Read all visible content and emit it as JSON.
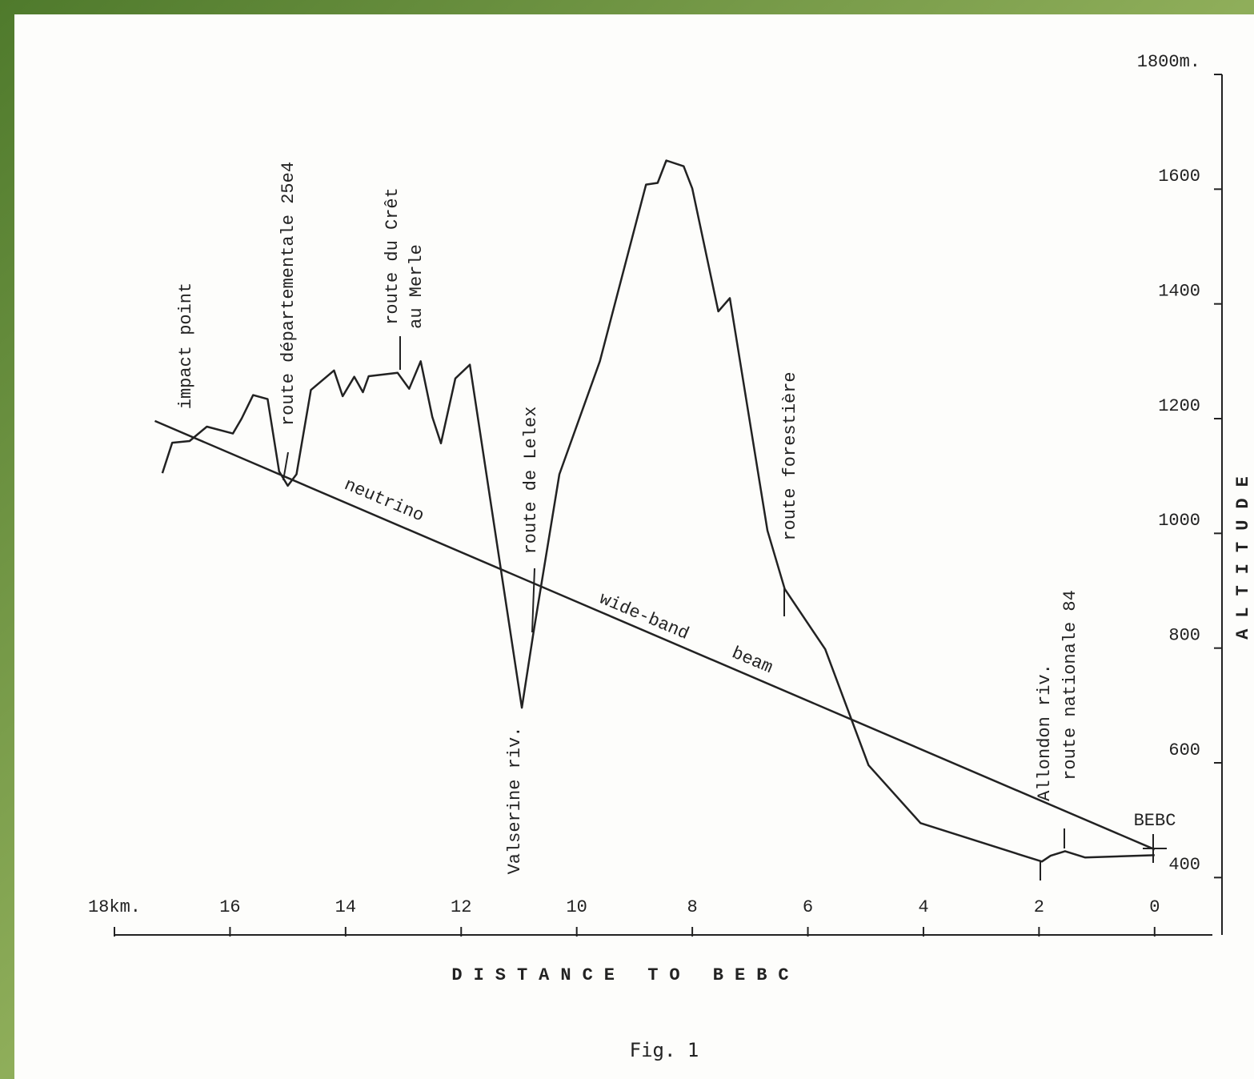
{
  "chart_data": {
    "type": "line",
    "x_label": "DISTANCE TO BEBC",
    "y_label": "ALTITUDE",
    "caption": "Fig. 1",
    "xlim": [
      18,
      -1
    ],
    "ylim": [
      300,
      1800
    ],
    "xticks": [
      {
        "value": 18,
        "label": "18km."
      },
      16,
      14,
      12,
      10,
      8,
      6,
      4,
      2,
      0
    ],
    "yticks": [
      400,
      600,
      800,
      1000,
      1200,
      1400,
      1600,
      {
        "value": 1800,
        "label": "1800m."
      }
    ],
    "series": [
      {
        "color": "#222222",
        "x": [
          17.17,
          17.0,
          16.7,
          16.4,
          15.95,
          15.8,
          15.6,
          15.35,
          15.15,
          15.0,
          14.85,
          14.6,
          14.2,
          14.05,
          13.85,
          13.7,
          13.6,
          13.1,
          12.9,
          12.7,
          12.5,
          12.35,
          12.1,
          11.85,
          10.95,
          10.75,
          10.3,
          9.6,
          8.8,
          8.6,
          8.45,
          8.15,
          8.0,
          7.55,
          7.35,
          6.7,
          6.4,
          5.7,
          4.95,
          4.05,
          2.3,
          1.95,
          1.8,
          1.55,
          1.2,
          0
        ],
        "values": [
          1105,
          1158,
          1161,
          1186,
          1174,
          1200,
          1241,
          1234,
          1108,
          1083,
          1103,
          1250,
          1284,
          1239,
          1273,
          1246,
          1274,
          1280,
          1252,
          1300,
          1203,
          1157,
          1270,
          1294,
          696,
          826,
          1103,
          1300,
          1608,
          1611,
          1650,
          1640,
          1601,
          1387,
          1410,
          1005,
          903,
          798,
          596,
          495,
          439,
          428,
          438,
          446,
          435,
          439
        ]
      },
      {
        "color": "#222222",
        "x": [
          17.3,
          0
        ],
        "values": [
          1196,
          449
        ]
      }
    ],
    "annotations": [
      "impact point",
      "route départementale 25e4",
      "route du Crêt",
      "au Merle",
      "route de Lelex",
      "route forestière",
      "Valserine riv.",
      "Allondon riv.",
      "route nationale 84",
      "BEBC",
      "neutrino",
      "wide-band",
      "beam"
    ]
  }
}
